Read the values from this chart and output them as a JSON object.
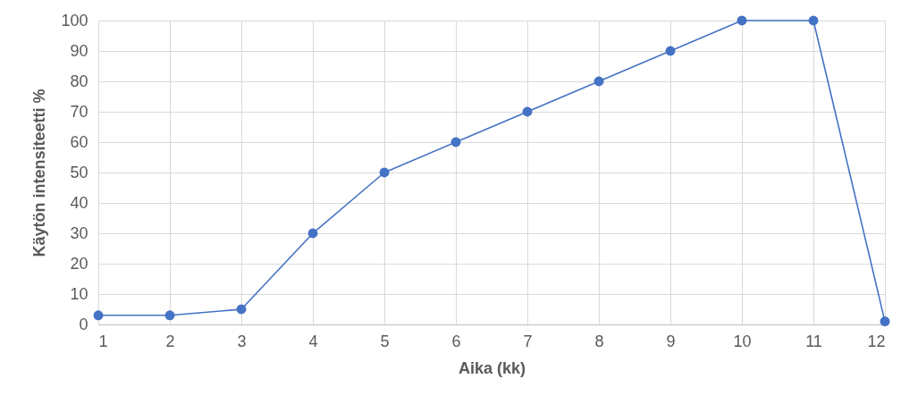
{
  "chart_data": {
    "type": "line",
    "xlabel": "Aika (kk)",
    "ylabel": "Käytön intensiteetti %",
    "x": [
      1,
      2,
      3,
      4,
      5,
      6,
      7,
      8,
      9,
      10,
      11,
      12
    ],
    "series": [
      {
        "color": "#4472c4",
        "values": [
          3,
          3,
          5,
          30,
          50,
          60,
          70,
          80,
          90,
          100,
          100,
          1
        ]
      }
    ],
    "xlim": [
      1,
      12
    ],
    "xticks": [
      1,
      2,
      3,
      4,
      5,
      6,
      7,
      8,
      9,
      10,
      11,
      12
    ],
    "ylim": [
      0,
      100
    ],
    "yticks": [
      0,
      10,
      20,
      30,
      40,
      50,
      60,
      70,
      80,
      90,
      100
    ],
    "grid": true,
    "marker": "circle",
    "line_style": "solid"
  }
}
